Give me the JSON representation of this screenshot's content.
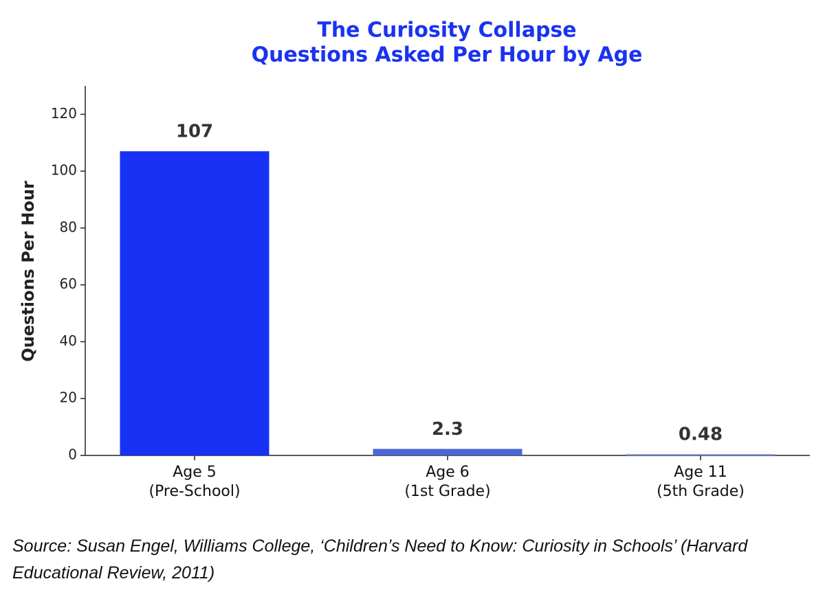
{
  "chart_data": {
    "type": "bar",
    "title": "The Curiosity Collapse",
    "subtitle": "Questions Asked Per Hour by Age",
    "ylabel": "Questions Per Hour",
    "categories": [
      "Age 5\n(Pre-School)",
      "Age 6\n(1st Grade)",
      "Age 11\n(5th Grade)"
    ],
    "values": [
      107,
      2.3,
      0.48
    ],
    "colors": [
      "#1731f5",
      "#4a66d6",
      "#8796e0"
    ],
    "ylim": [
      0,
      130
    ],
    "yticks": [
      0,
      20,
      40,
      60,
      80,
      100,
      120
    ],
    "source": "Source: Susan Engel, Williams College, ‘Children’s Need to Know: Curiosity in Schools’ (Harvard Educational Review, 2011)"
  }
}
